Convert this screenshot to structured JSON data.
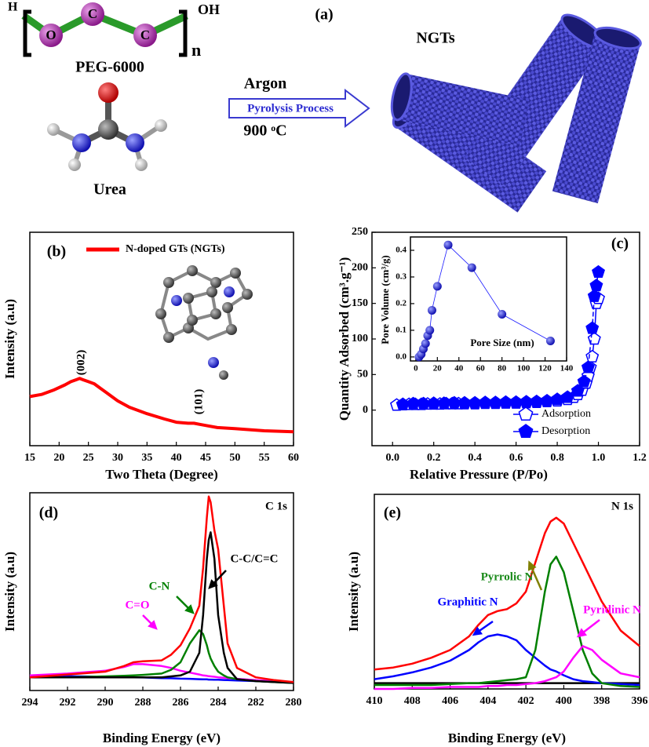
{
  "scheme": {
    "panel_label": "(a)",
    "peg_h": "H",
    "peg_oh": "OH",
    "peg_n": "n",
    "atom_o": "O",
    "atom_c1": "C",
    "atom_c2": "C",
    "peg_name": "PEG-6000",
    "urea_name": "Urea",
    "gas": "Argon",
    "process": "Pyrolysis Process",
    "temperature": "900 ᵒC",
    "product": "NGTs"
  },
  "chart_data": [
    {
      "type": "line",
      "panel_label": "(b)",
      "x_label": "Two Theta (Degree)",
      "y_label": "Intensity (a.u)",
      "x": [
        15,
        17,
        19,
        21,
        22,
        23,
        23.5,
        24,
        25,
        26,
        27,
        28,
        30,
        32,
        35,
        38,
        40,
        42,
        43,
        44,
        45,
        47,
        50,
        55,
        60
      ],
      "series": [
        {
          "name": "N-doped GTs (NGTs)",
          "color": "#ff0000",
          "values": [
            23,
            24,
            26,
            28.5,
            30,
            31,
            31.5,
            31,
            30,
            29,
            27,
            25,
            21,
            18,
            15,
            12.5,
            11,
            10.5,
            10.5,
            10,
            9.5,
            8.5,
            8,
            7,
            6.5
          ]
        }
      ],
      "xlim": [
        15,
        60
      ],
      "xticks": [
        15,
        20,
        25,
        30,
        35,
        40,
        45,
        50,
        55,
        60
      ],
      "ylim": [
        0,
        100
      ],
      "legend": "upper right",
      "annotations": [
        "(002)",
        "(101)"
      ]
    },
    {
      "type": "scatter",
      "panel_label": "(c)",
      "x_label": "Relative Pressure (P/Po)",
      "y_label": "Quantity Adsorbed (cm³.g⁻¹)",
      "series": [
        {
          "name": "Adsorption",
          "color": "#0000ff",
          "marker": "open-pentagon",
          "x": [
            0.02,
            0.05,
            0.08,
            0.11,
            0.14,
            0.17,
            0.2,
            0.23,
            0.26,
            0.29,
            0.32,
            0.35,
            0.4,
            0.45,
            0.5,
            0.55,
            0.6,
            0.65,
            0.7,
            0.75,
            0.8,
            0.85,
            0.88,
            0.9,
            0.92,
            0.94,
            0.95,
            0.96,
            0.97,
            0.98,
            0.99,
            1.0
          ],
          "values": [
            7,
            7.5,
            8,
            8,
            8,
            8.5,
            8.5,
            8.5,
            9,
            9,
            9,
            9,
            9,
            9.5,
            9.5,
            10,
            10,
            10.5,
            11,
            12,
            13,
            15,
            18,
            22,
            28,
            38,
            48,
            60,
            75,
            100,
            150,
            157
          ]
        },
        {
          "name": "Desorption",
          "color": "#0000ff",
          "marker": "filled-pentagon",
          "x": [
            0.05,
            0.1,
            0.15,
            0.2,
            0.25,
            0.3,
            0.35,
            0.4,
            0.45,
            0.5,
            0.55,
            0.6,
            0.65,
            0.7,
            0.75,
            0.8,
            0.85,
            0.9,
            0.93,
            0.95,
            0.97,
            0.98,
            0.99,
            1.0
          ],
          "values": [
            8,
            9,
            9,
            9.5,
            9.5,
            10,
            10,
            10,
            10.5,
            10.5,
            11,
            11,
            11.5,
            12,
            13,
            15,
            18,
            27,
            40,
            60,
            115,
            160,
            175,
            194
          ]
        }
      ],
      "xlim": [
        -0.1,
        1.2
      ],
      "xticks": [
        {
          "value": 0,
          "label": "0.0"
        },
        0.2,
        0.4,
        0.6,
        0.8,
        {
          "value": 1,
          "label": "1.0"
        },
        1.2
      ],
      "ylim": [
        -50,
        250
      ],
      "yticks": [
        0,
        50,
        100,
        150,
        200,
        250
      ],
      "legend": "lower right"
    },
    {
      "type": "scatter",
      "x_label": "Pore Size (nm)",
      "y_label": "Pore Volume (cm³/g)",
      "series": [
        {
          "color": "#1a1aff",
          "marker": "sphere",
          "x": [
            3,
            5,
            7,
            9,
            11,
            13,
            15,
            20,
            30,
            52,
            80,
            125
          ],
          "values": [
            0.0,
            0.01,
            0.03,
            0.05,
            0.08,
            0.1,
            0.175,
            0.265,
            0.42,
            0.335,
            0.16,
            0.06
          ]
        }
      ],
      "xlim": [
        -5,
        140
      ],
      "xticks": [
        0,
        20,
        40,
        60,
        80,
        100,
        120,
        140
      ],
      "ylim": [
        -0.015,
        0.45
      ],
      "yticks": [
        {
          "value": 0,
          "label": "0.0"
        },
        0.1,
        0.2,
        0.3,
        0.4
      ]
    },
    {
      "type": "line",
      "panel_label": "(d)",
      "x_label": "Binding Energy (eV)",
      "y_label": "Intensity (a.u)",
      "x": [
        294,
        292,
        290,
        289,
        288.5,
        288,
        287,
        286.5,
        286,
        285.5,
        285,
        284.8,
        284.6,
        284.5,
        284.4,
        284.2,
        284,
        283.7,
        283.5,
        283,
        282,
        281,
        280
      ],
      "series": [
        {
          "color": "#0000ff",
          "values": [
            8,
            7.6,
            7.3,
            7.1,
            7,
            6.9,
            6.6,
            6.5,
            6.3,
            6.2,
            6,
            5.9,
            5.9,
            5.8,
            5.8,
            5.7,
            5.7,
            5.6,
            5.5,
            5.3,
            5,
            4.6,
            4.3
          ]
        },
        {
          "color": "#ff00ff",
          "values": [
            8,
            9,
            10.5,
            12.5,
            14,
            14,
            13,
            12,
            10.5,
            9.5,
            8.5,
            8,
            7.8,
            7.6,
            7.5,
            7.3,
            7,
            6.8,
            6.6,
            6.2,
            5.5,
            5,
            4.5
          ]
        },
        {
          "color": "#008000",
          "values": [
            7,
            7,
            7.5,
            7.8,
            8,
            8.3,
            9,
            11,
            15,
            25,
            32,
            30,
            24,
            20,
            17,
            13,
            10,
            8,
            7,
            6,
            5,
            4.5,
            4
          ]
        },
        {
          "color": "#000000",
          "values": [
            7,
            7,
            7,
            7,
            7,
            7,
            7,
            7.5,
            8,
            10,
            20,
            40,
            70,
            80,
            84,
            70,
            40,
            20,
            12,
            6,
            5,
            4.5,
            4
          ]
        },
        {
          "color": "#ff0000",
          "values": [
            7,
            8.5,
            10,
            13,
            15,
            15.5,
            16,
            19,
            24,
            33,
            45,
            65,
            92,
            103,
            100,
            85,
            75,
            45,
            25,
            12,
            7,
            5.5,
            4.5
          ]
        }
      ],
      "xlim": [
        294,
        280
      ],
      "xticks": [
        294,
        292,
        290,
        288,
        286,
        284,
        282,
        280
      ],
      "ylim": [
        0,
        105
      ],
      "annotations": [
        "C 1s",
        "C=O",
        "C-N",
        "C-C/C=C"
      ]
    },
    {
      "type": "line",
      "panel_label": "(e)",
      "x_label": "Binding Energy (eV)",
      "y_label": "Intensity (a.u)",
      "x": [
        410,
        409,
        408,
        407,
        406,
        405,
        404.5,
        404,
        403.5,
        403,
        402.5,
        402,
        401.5,
        401,
        400.7,
        400.4,
        400,
        399.5,
        399,
        398.5,
        398,
        397,
        396
      ],
      "series": [
        {
          "color": "#000000",
          "values": [
            3,
            3,
            3,
            3,
            3,
            3,
            3,
            3,
            3,
            3,
            3,
            3,
            3,
            3,
            3,
            3,
            3,
            3,
            3,
            3,
            3,
            3,
            3
          ]
        },
        {
          "color": "#0000ff",
          "values": [
            5,
            6.5,
            8.5,
            11,
            14.5,
            20,
            24,
            27,
            28,
            27,
            25,
            20,
            16,
            12,
            10,
            9,
            7,
            5,
            4,
            3.5,
            3,
            2.5,
            2
          ]
        },
        {
          "color": "#008000",
          "values": [
            2,
            2,
            2,
            2,
            2.5,
            3,
            3,
            3.5,
            4,
            4.5,
            5,
            6,
            20,
            50,
            64,
            68,
            60,
            40,
            20,
            8,
            3,
            1.5,
            1
          ]
        },
        {
          "color": "#ff00ff",
          "values": [
            0,
            0,
            0.5,
            0.5,
            1,
            1,
            1,
            1.5,
            1.5,
            2,
            2,
            2.5,
            3,
            4,
            5,
            6,
            9,
            16,
            22,
            20,
            15,
            8,
            6
          ]
        },
        {
          "color": "#ff0000",
          "values": [
            10,
            11,
            13,
            16,
            20,
            27,
            33,
            38,
            40,
            41,
            44,
            50,
            65,
            80,
            86,
            88,
            85,
            75,
            65,
            55,
            45,
            30,
            22
          ]
        }
      ],
      "xlim": [
        410,
        396
      ],
      "xticks": [
        410,
        408,
        406,
        404,
        402,
        400,
        398,
        396
      ],
      "ylim": [
        0,
        100
      ],
      "annotations": [
        "N 1s",
        "Graphitic N",
        "Pyrrolic N",
        "Pyridinic N"
      ]
    }
  ]
}
